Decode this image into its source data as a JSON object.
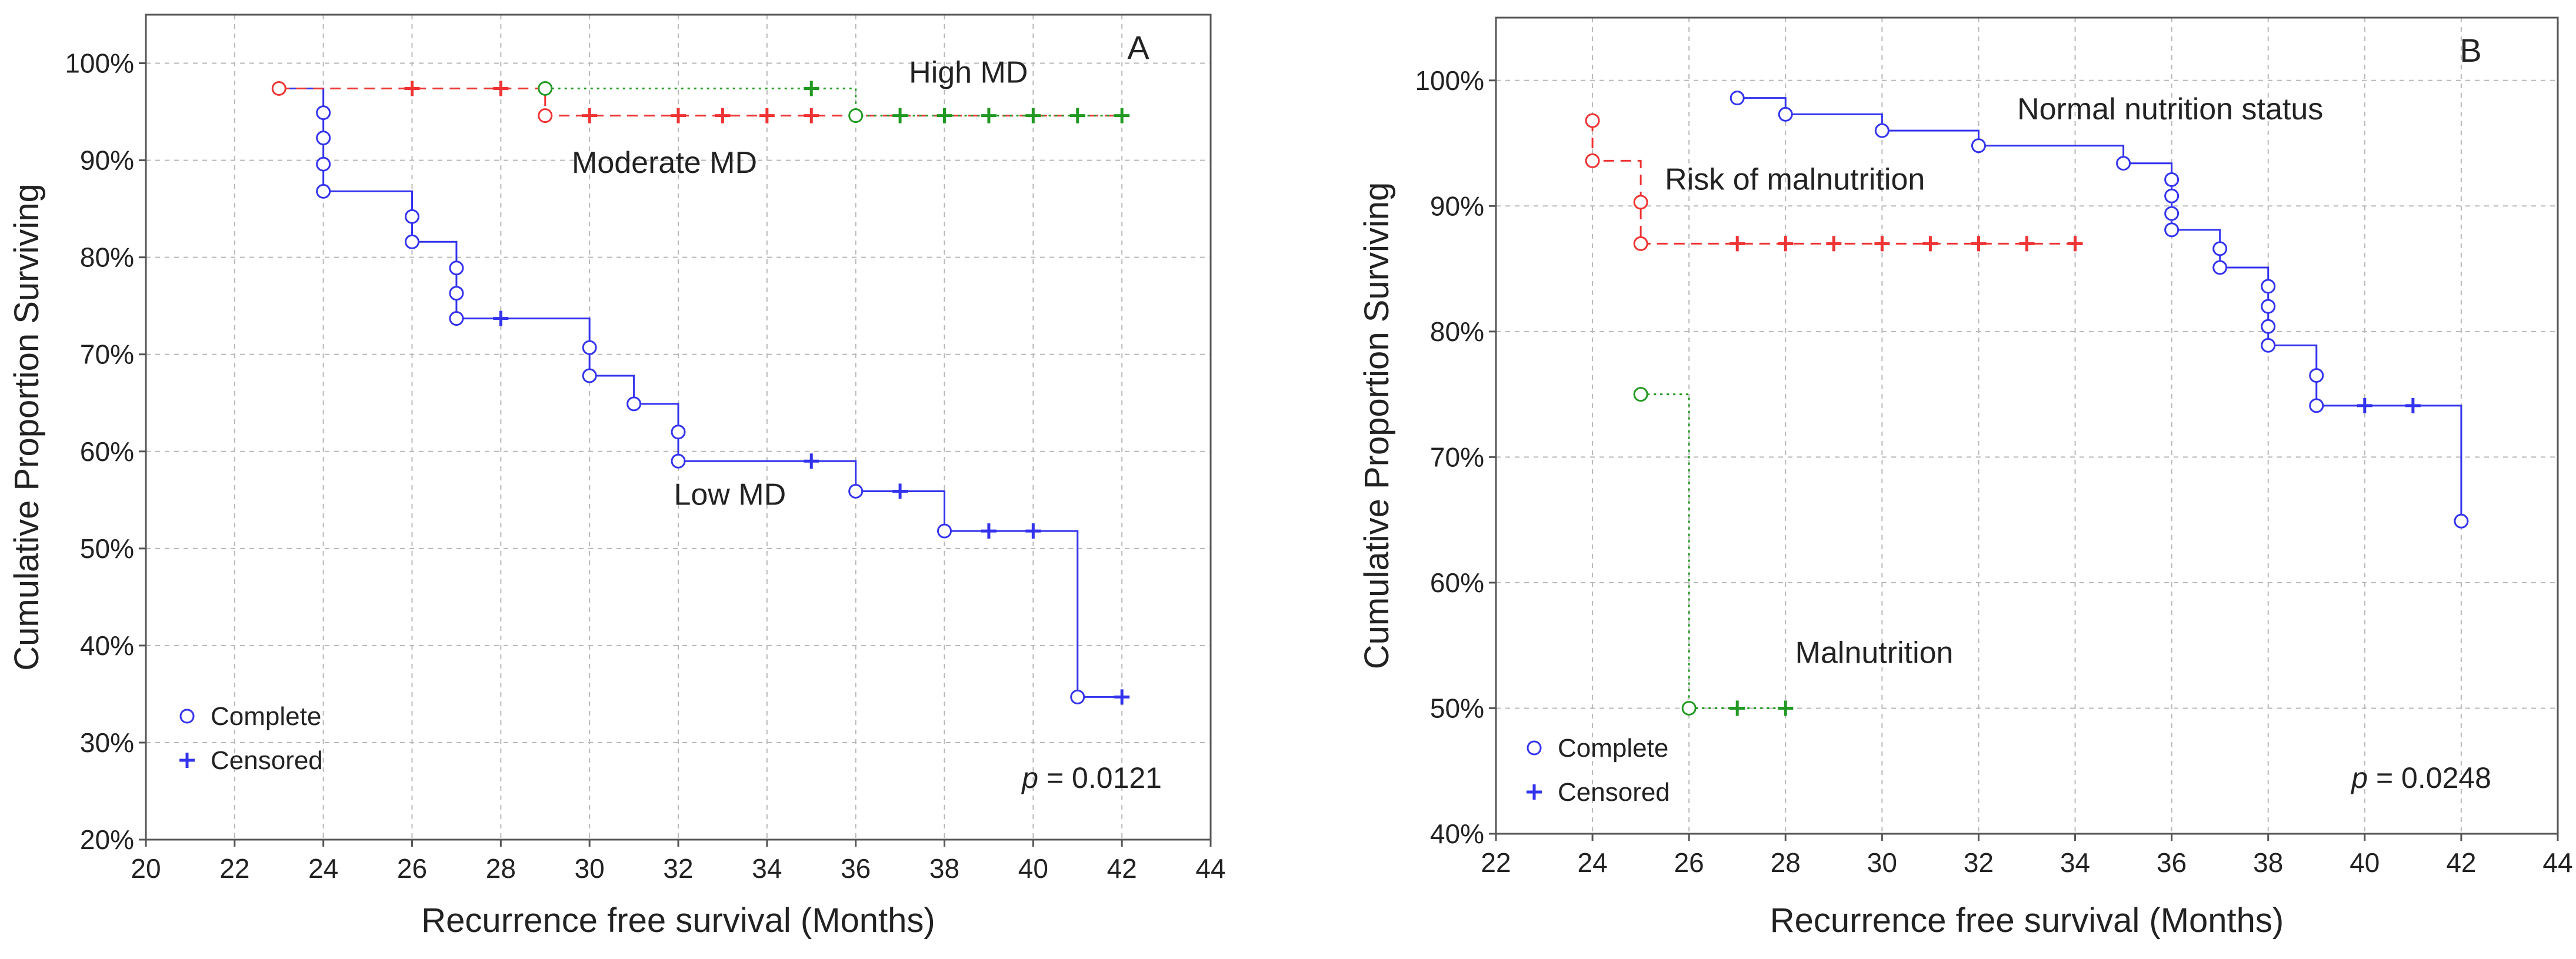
{
  "chart_data": [
    {
      "type": "line",
      "panel_label": "A",
      "xlabel": "Recurrence free survival (Months)",
      "ylabel": "Cumulative Proportion Surviving",
      "xlim": [
        20,
        44
      ],
      "ylim": [
        20,
        105
      ],
      "x_ticks": [
        20,
        22,
        24,
        26,
        28,
        30,
        32,
        34,
        36,
        38,
        40,
        42,
        44
      ],
      "y_ticks": [
        20,
        30,
        40,
        50,
        60,
        70,
        80,
        90,
        100
      ],
      "y_tick_labels": [
        "20%",
        "30%",
        "40%",
        "50%",
        "60%",
        "70%",
        "80%",
        "90%",
        "100%"
      ],
      "grid": true,
      "p_value": {
        "italic": "p",
        "rest": " = 0.0121"
      },
      "legend": {
        "placement": "bottom-left",
        "entries": [
          {
            "marker": "circle",
            "label": "Complete"
          },
          {
            "marker": "plus",
            "label": "Censored"
          }
        ]
      },
      "series": [
        {
          "name": "Low MD",
          "color": "#3333ee",
          "dash": "solid",
          "label": "Low MD",
          "label_at": [
            31.9,
            54.5
          ],
          "steps": [
            [
              23,
              97.4
            ],
            [
              24,
              86.8
            ],
            [
              26,
              81.6
            ],
            [
              27,
              73.7
            ],
            [
              30,
              67.8
            ],
            [
              31,
              64.9
            ],
            [
              32,
              59.0
            ],
            [
              36,
              55.9
            ],
            [
              38,
              51.8
            ],
            [
              41,
              34.7
            ],
            [
              42,
              34.7
            ]
          ],
          "complete": [
            [
              24,
              94.9
            ],
            [
              24,
              92.3
            ],
            [
              24,
              89.6
            ],
            [
              24,
              86.8
            ],
            [
              26,
              84.2
            ],
            [
              26,
              81.6
            ],
            [
              27,
              78.9
            ],
            [
              27,
              76.3
            ],
            [
              27,
              73.7
            ],
            [
              30,
              70.7
            ],
            [
              30,
              67.8
            ],
            [
              31,
              64.9
            ],
            [
              32,
              62.0
            ],
            [
              32,
              59.0
            ],
            [
              36,
              55.9
            ],
            [
              38,
              51.8
            ],
            [
              41,
              34.7
            ]
          ],
          "censored": [
            [
              28,
              73.7
            ],
            [
              35,
              59.0
            ],
            [
              37,
              55.9
            ],
            [
              39,
              51.8
            ],
            [
              40,
              51.8
            ],
            [
              42,
              34.7
            ]
          ]
        },
        {
          "name": "Moderate MD",
          "color": "#ee3333",
          "dash": "dashed",
          "label": "Moderate MD",
          "label_at": [
            29.6,
            88.7
          ],
          "steps": [
            [
              23,
              97.4
            ],
            [
              29,
              94.6
            ],
            [
              42,
              94.6
            ]
          ],
          "complete": [
            [
              23,
              97.4
            ],
            [
              29,
              94.6
            ]
          ],
          "censored": [
            [
              26,
              97.4
            ],
            [
              28,
              97.4
            ],
            [
              30,
              94.6
            ],
            [
              32,
              94.6
            ],
            [
              33,
              94.6
            ],
            [
              34,
              94.6
            ],
            [
              35,
              94.6
            ]
          ]
        },
        {
          "name": "High MD",
          "color": "#229922",
          "dash": "dotted",
          "label": "High MD",
          "label_at": [
            37.2,
            98.0
          ],
          "steps": [
            [
              29,
              97.4
            ],
            [
              36,
              94.6
            ],
            [
              42,
              94.6
            ]
          ],
          "complete": [
            [
              29,
              97.4
            ],
            [
              36,
              94.6
            ]
          ],
          "censored": [
            [
              35,
              97.4
            ],
            [
              37,
              94.6
            ],
            [
              38,
              94.6
            ],
            [
              39,
              94.6
            ],
            [
              40,
              94.6
            ],
            [
              41,
              94.6
            ],
            [
              42,
              94.6
            ]
          ]
        }
      ]
    },
    {
      "type": "line",
      "panel_label": "B",
      "xlabel": "Recurrence free survival (Months)",
      "ylabel": "Cumulative Proportion Surviving",
      "xlim": [
        22,
        44
      ],
      "ylim": [
        40,
        105
      ],
      "x_ticks": [
        22,
        24,
        26,
        28,
        30,
        32,
        34,
        36,
        38,
        40,
        42,
        44
      ],
      "y_ticks": [
        40,
        50,
        60,
        70,
        80,
        90,
        100
      ],
      "y_tick_labels": [
        "40%",
        "50%",
        "60%",
        "70%",
        "80%",
        "90%",
        "100%"
      ],
      "grid": true,
      "p_value": {
        "italic": "p",
        "rest": " = 0.0248"
      },
      "legend": {
        "placement": "bottom-left",
        "entries": [
          {
            "marker": "circle",
            "label": "Complete"
          },
          {
            "marker": "plus",
            "label": "Censored"
          }
        ]
      },
      "series": [
        {
          "name": "Normal nutrition status",
          "color": "#3333ee",
          "dash": "solid",
          "label": "Normal nutrition status",
          "label_at": [
            32.8,
            96.9
          ],
          "steps": [
            [
              27,
              98.6
            ],
            [
              28,
              97.3
            ],
            [
              30,
              96.0
            ],
            [
              32,
              94.8
            ],
            [
              35,
              93.4
            ],
            [
              36,
              88.1
            ],
            [
              37,
              85.1
            ],
            [
              38,
              78.9
            ],
            [
              39,
              74.1
            ],
            [
              42,
              64.9
            ]
          ],
          "complete": [
            [
              27,
              98.6
            ],
            [
              28,
              97.3
            ],
            [
              30,
              96.0
            ],
            [
              32,
              94.8
            ],
            [
              35,
              93.4
            ],
            [
              36,
              92.1
            ],
            [
              36,
              90.8
            ],
            [
              36,
              89.4
            ],
            [
              36,
              88.1
            ],
            [
              37,
              86.6
            ],
            [
              37,
              85.1
            ],
            [
              38,
              83.6
            ],
            [
              38,
              82.0
            ],
            [
              38,
              80.4
            ],
            [
              38,
              78.9
            ],
            [
              39,
              76.5
            ],
            [
              39,
              74.1
            ],
            [
              42,
              64.9
            ]
          ],
          "censored": [
            [
              40,
              74.1
            ],
            [
              41,
              74.1
            ]
          ]
        },
        {
          "name": "Risk of malnutrition",
          "color": "#ee3333",
          "dash": "dashed",
          "label": "Risk of malnutrition",
          "label_at": [
            25.5,
            91.3
          ],
          "steps": [
            [
              24,
              96.8
            ],
            [
              24,
              93.6
            ],
            [
              25,
              87.0
            ],
            [
              34,
              87.0
            ]
          ],
          "complete": [
            [
              24,
              96.8
            ],
            [
              24,
              93.6
            ],
            [
              25,
              90.3
            ],
            [
              25,
              87.0
            ]
          ],
          "censored": [
            [
              27,
              87.0
            ],
            [
              28,
              87.0
            ],
            [
              29,
              87.0
            ],
            [
              30,
              87.0
            ],
            [
              31,
              87.0
            ],
            [
              32,
              87.0
            ],
            [
              33,
              87.0
            ],
            [
              34,
              87.0
            ]
          ]
        },
        {
          "name": "Malnutrition",
          "color": "#229922",
          "dash": "dotted",
          "label": "Malnutrition",
          "label_at": [
            28.2,
            53.6
          ],
          "steps": [
            [
              25,
              75.0
            ],
            [
              26,
              50.0
            ],
            [
              28,
              50.0
            ]
          ],
          "complete": [
            [
              25,
              75.0
            ],
            [
              26,
              50.0
            ]
          ],
          "censored": [
            [
              27,
              50.0
            ],
            [
              28,
              50.0
            ]
          ]
        }
      ]
    }
  ],
  "colors": {
    "text": "#222222",
    "grid": "#b8b8b8",
    "axis": "#555555",
    "legend_marker": "#3333ee"
  }
}
